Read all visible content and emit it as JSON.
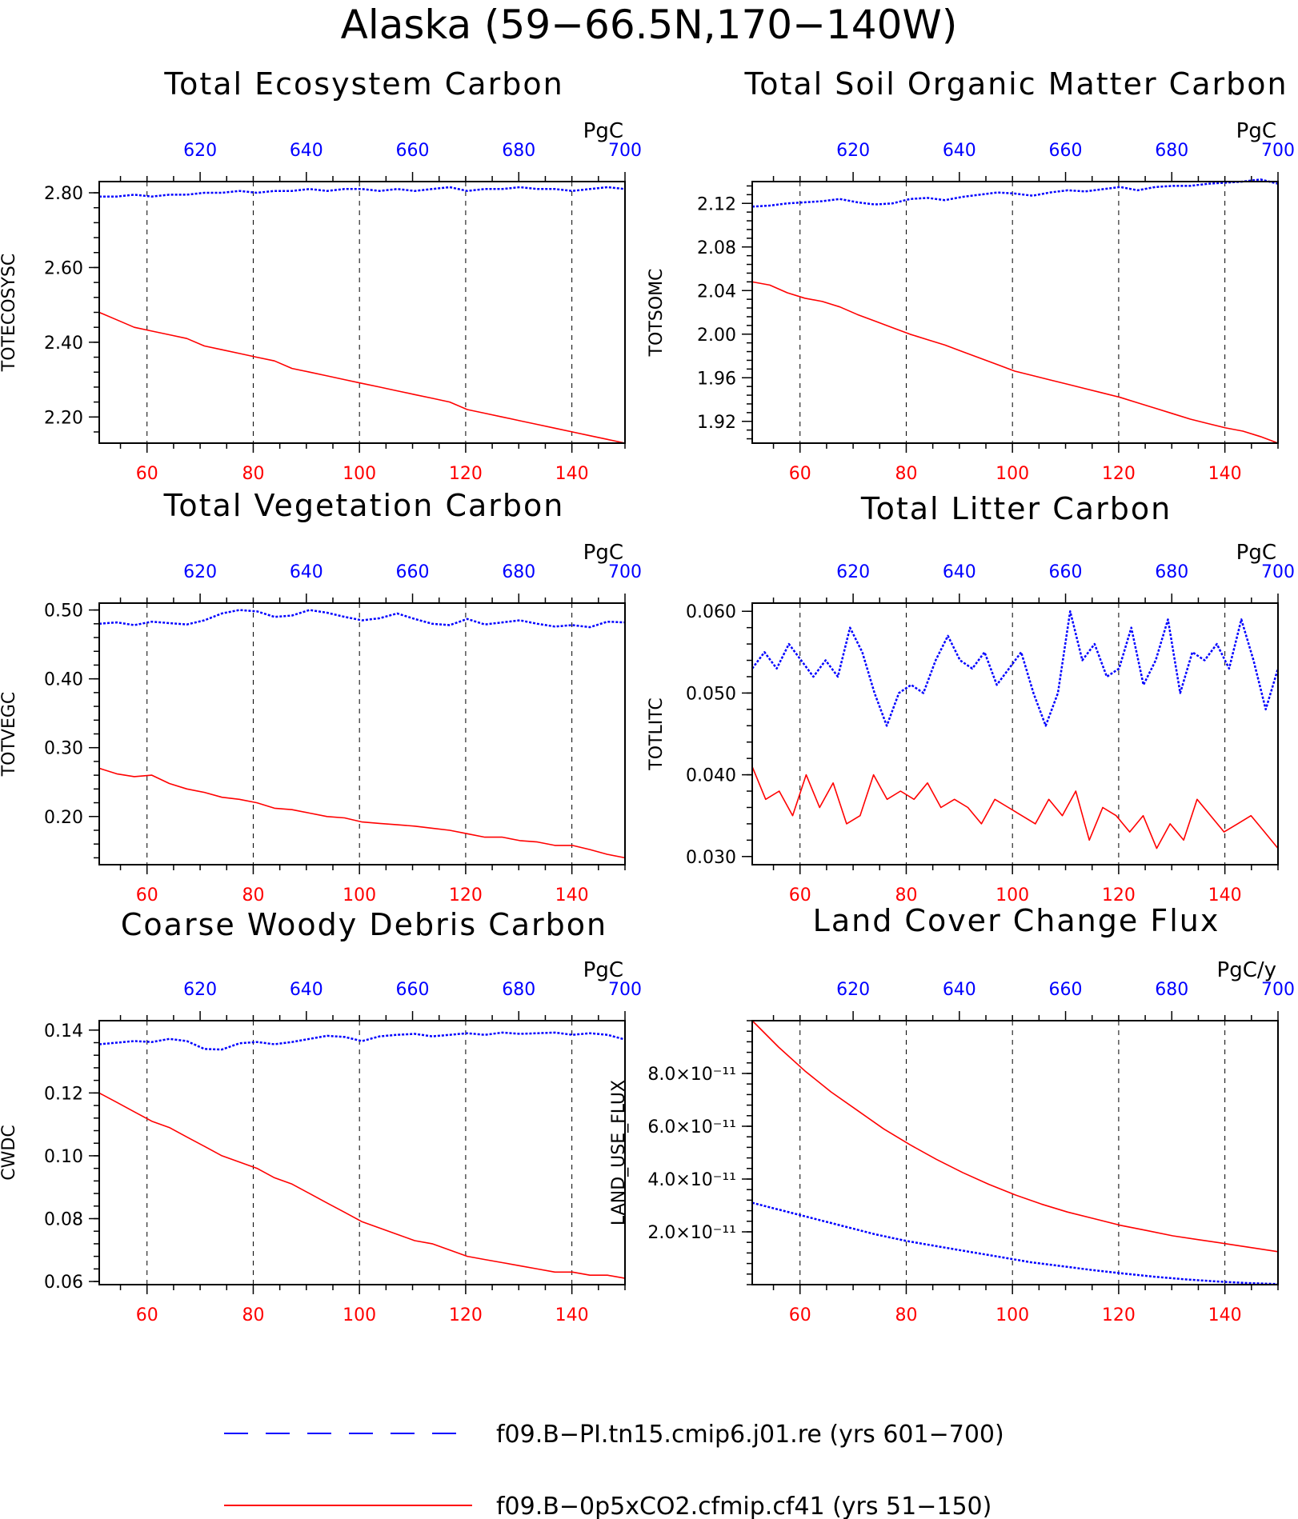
{
  "title": "Alaska (59−66.5N,170−140W)",
  "colors": {
    "series_pi": "#0000ff",
    "series_co2": "#ff0000",
    "top_axis": "#0000ff",
    "bottom_axis": "#ff0000"
  },
  "legend": [
    {
      "label": "f09.B−PI.tn15.cmip6.j01.re (yrs 601−700)",
      "color": "#0000ff",
      "style": "dashed"
    },
    {
      "label": "f09.B−0p5xCO2.cfmip.cf41 (yrs 51−150)",
      "color": "#ff0000",
      "style": "solid"
    }
  ],
  "chart_data": [
    {
      "type": "line",
      "title": "Total Ecosystem Carbon",
      "ylabel": "TOTECOSYSC",
      "unit": "PgC",
      "xlim": [
        51,
        150
      ],
      "x_top_lim": [
        601,
        700
      ],
      "ylim": [
        2.13,
        2.83
      ],
      "x_ticks": [
        "60",
        "80",
        "100",
        "120",
        "140"
      ],
      "x_top_ticks": [
        "620",
        "640",
        "660",
        "680",
        "700"
      ],
      "y_ticks": [
        "2.20",
        "2.40",
        "2.60",
        "2.80"
      ],
      "y_tick_values": [
        2.2,
        2.4,
        2.6,
        2.8
      ],
      "y_minor_step": 0.04,
      "grid": "vertical dashed at bottom-axis ticks",
      "series": [
        {
          "color": "#0000ff",
          "style": "dotted",
          "x_start": 51,
          "x_end": 150,
          "values": [
            2.79,
            2.79,
            2.795,
            2.79,
            2.795,
            2.795,
            2.8,
            2.8,
            2.805,
            2.8,
            2.805,
            2.805,
            2.81,
            2.805,
            2.81,
            2.81,
            2.805,
            2.81,
            2.805,
            2.81,
            2.815,
            2.805,
            2.81,
            2.81,
            2.815,
            2.81,
            2.81,
            2.805,
            2.81,
            2.815,
            2.81
          ]
        },
        {
          "color": "#ff0000",
          "style": "solid",
          "x_start": 51,
          "x_end": 150,
          "values": [
            2.48,
            2.46,
            2.44,
            2.43,
            2.42,
            2.41,
            2.39,
            2.38,
            2.37,
            2.36,
            2.35,
            2.33,
            2.32,
            2.31,
            2.3,
            2.29,
            2.28,
            2.27,
            2.26,
            2.25,
            2.24,
            2.22,
            2.21,
            2.2,
            2.19,
            2.18,
            2.17,
            2.16,
            2.15,
            2.14,
            2.13
          ]
        }
      ]
    },
    {
      "type": "line",
      "title": "Total Soil Organic Matter Carbon",
      "ylabel": "TOTSOMC",
      "unit": "PgC",
      "xlim": [
        51,
        150
      ],
      "x_top_lim": [
        601,
        700
      ],
      "ylim": [
        1.9,
        2.14
      ],
      "x_ticks": [
        "60",
        "80",
        "100",
        "120",
        "140"
      ],
      "x_top_ticks": [
        "620",
        "640",
        "660",
        "680",
        "700"
      ],
      "y_ticks": [
        "1.92",
        "1.96",
        "2.00",
        "2.04",
        "2.08",
        "2.12"
      ],
      "y_tick_values": [
        1.92,
        1.96,
        2.0,
        2.04,
        2.08,
        2.12
      ],
      "y_minor_step": 0.008,
      "grid": "vertical dashed at bottom-axis ticks",
      "series": [
        {
          "color": "#0000ff",
          "style": "dotted",
          "x_start": 51,
          "x_end": 150,
          "values": [
            2.117,
            2.118,
            2.12,
            2.121,
            2.122,
            2.124,
            2.121,
            2.119,
            2.12,
            2.124,
            2.125,
            2.123,
            2.126,
            2.128,
            2.13,
            2.129,
            2.127,
            2.13,
            2.132,
            2.131,
            2.133,
            2.135,
            2.132,
            2.135,
            2.136,
            2.136,
            2.138,
            2.139,
            2.14,
            2.142,
            2.138
          ]
        },
        {
          "color": "#ff0000",
          "style": "solid",
          "x_start": 51,
          "x_end": 150,
          "values": [
            2.048,
            2.045,
            2.038,
            2.033,
            2.03,
            2.025,
            2.018,
            2.012,
            2.006,
            2.0,
            1.995,
            1.99,
            1.984,
            1.978,
            1.972,
            1.966,
            1.962,
            1.958,
            1.954,
            1.95,
            1.946,
            1.942,
            1.937,
            1.932,
            1.927,
            1.922,
            1.918,
            1.914,
            1.911,
            1.906,
            1.9
          ]
        }
      ]
    },
    {
      "type": "line",
      "title": "Total Vegetation Carbon",
      "ylabel": "TOTVEGC",
      "unit": "PgC",
      "xlim": [
        51,
        150
      ],
      "x_top_lim": [
        601,
        700
      ],
      "ylim": [
        0.13,
        0.51
      ],
      "x_ticks": [
        "60",
        "80",
        "100",
        "120",
        "140"
      ],
      "x_top_ticks": [
        "620",
        "640",
        "660",
        "680",
        "700"
      ],
      "y_ticks": [
        "0.20",
        "0.30",
        "0.40",
        "0.50"
      ],
      "y_tick_values": [
        0.2,
        0.3,
        0.4,
        0.5
      ],
      "y_minor_step": 0.02,
      "grid": "vertical dashed at bottom-axis ticks",
      "series": [
        {
          "color": "#0000ff",
          "style": "dotted",
          "x_start": 51,
          "x_end": 150,
          "values": [
            0.48,
            0.482,
            0.478,
            0.483,
            0.481,
            0.479,
            0.485,
            0.495,
            0.5,
            0.498,
            0.49,
            0.492,
            0.5,
            0.496,
            0.49,
            0.485,
            0.488,
            0.495,
            0.487,
            0.48,
            0.478,
            0.487,
            0.479,
            0.482,
            0.485,
            0.48,
            0.476,
            0.478,
            0.475,
            0.483,
            0.482
          ]
        },
        {
          "color": "#ff0000",
          "style": "solid",
          "x_start": 51,
          "x_end": 150,
          "values": [
            0.27,
            0.262,
            0.258,
            0.26,
            0.248,
            0.24,
            0.235,
            0.228,
            0.225,
            0.22,
            0.212,
            0.21,
            0.205,
            0.2,
            0.198,
            0.192,
            0.19,
            0.188,
            0.186,
            0.183,
            0.18,
            0.175,
            0.17,
            0.17,
            0.165,
            0.163,
            0.158,
            0.158,
            0.152,
            0.145,
            0.14
          ]
        }
      ]
    },
    {
      "type": "line",
      "title": "Total Litter Carbon",
      "ylabel": "TOTLITC",
      "unit": "PgC",
      "xlim": [
        51,
        150
      ],
      "x_top_lim": [
        601,
        700
      ],
      "ylim": [
        0.029,
        0.061
      ],
      "x_ticks": [
        "60",
        "80",
        "100",
        "120",
        "140"
      ],
      "x_top_ticks": [
        "620",
        "640",
        "660",
        "680",
        "700"
      ],
      "y_ticks": [
        "0.030",
        "0.040",
        "0.050",
        "0.060"
      ],
      "y_tick_values": [
        0.03,
        0.04,
        0.05,
        0.06
      ],
      "y_minor_step": 0.002,
      "grid": "vertical dashed at bottom-axis ticks",
      "series": [
        {
          "color": "#0000ff",
          "style": "dotted",
          "x_start": 51,
          "x_end": 150,
          "values": [
            0.053,
            0.055,
            0.053,
            0.056,
            0.054,
            0.052,
            0.054,
            0.052,
            0.058,
            0.055,
            0.05,
            0.046,
            0.05,
            0.051,
            0.05,
            0.054,
            0.057,
            0.054,
            0.053,
            0.055,
            0.051,
            0.053,
            0.055,
            0.05,
            0.046,
            0.05,
            0.06,
            0.054,
            0.056,
            0.052,
            0.053,
            0.058,
            0.051,
            0.054,
            0.059,
            0.05,
            0.055,
            0.054,
            0.056,
            0.053,
            0.059,
            0.054,
            0.048,
            0.053
          ]
        },
        {
          "color": "#ff0000",
          "style": "solid",
          "x_start": 51,
          "x_end": 150,
          "values": [
            0.041,
            0.037,
            0.038,
            0.035,
            0.04,
            0.036,
            0.039,
            0.034,
            0.035,
            0.04,
            0.037,
            0.038,
            0.037,
            0.039,
            0.036,
            0.037,
            0.036,
            0.034,
            0.037,
            0.036,
            0.035,
            0.034,
            0.037,
            0.035,
            0.038,
            0.032,
            0.036,
            0.035,
            0.033,
            0.035,
            0.031,
            0.034,
            0.032,
            0.037,
            0.035,
            0.033,
            0.034,
            0.035,
            0.033,
            0.031
          ]
        }
      ]
    },
    {
      "type": "line",
      "title": "Coarse Woody Debris Carbon",
      "ylabel": "CWDC",
      "unit": "PgC",
      "xlim": [
        51,
        150
      ],
      "x_top_lim": [
        601,
        700
      ],
      "ylim": [
        0.059,
        0.143
      ],
      "x_ticks": [
        "60",
        "80",
        "100",
        "120",
        "140"
      ],
      "x_top_ticks": [
        "620",
        "640",
        "660",
        "680",
        "700"
      ],
      "y_ticks": [
        "0.06",
        "0.08",
        "0.10",
        "0.12",
        "0.14"
      ],
      "y_tick_values": [
        0.06,
        0.08,
        0.1,
        0.12,
        0.14
      ],
      "y_minor_step": 0.004,
      "grid": "vertical dashed at bottom-axis ticks",
      "series": [
        {
          "color": "#0000ff",
          "style": "dotted",
          "x_start": 51,
          "x_end": 150,
          "values": [
            0.1355,
            0.136,
            0.1365,
            0.1362,
            0.1372,
            0.1365,
            0.134,
            0.1338,
            0.1358,
            0.1362,
            0.1355,
            0.1362,
            0.1372,
            0.1382,
            0.1378,
            0.1365,
            0.138,
            0.1385,
            0.1388,
            0.138,
            0.1385,
            0.139,
            0.1385,
            0.1392,
            0.1388,
            0.139,
            0.1392,
            0.1385,
            0.139,
            0.1385,
            0.137
          ]
        },
        {
          "color": "#ff0000",
          "style": "solid",
          "x_start": 51,
          "x_end": 150,
          "values": [
            0.12,
            0.117,
            0.114,
            0.111,
            0.109,
            0.106,
            0.103,
            0.1,
            0.098,
            0.096,
            0.093,
            0.091,
            0.088,
            0.085,
            0.082,
            0.079,
            0.077,
            0.075,
            0.073,
            0.072,
            0.07,
            0.068,
            0.067,
            0.066,
            0.065,
            0.064,
            0.063,
            0.063,
            0.062,
            0.062,
            0.061
          ]
        }
      ]
    },
    {
      "type": "line",
      "title": "Land Cover Change Flux",
      "ylabel": "LAND_USE_FLUX",
      "unit": "PgC/y",
      "xlim": [
        51,
        150
      ],
      "x_top_lim": [
        601,
        700
      ],
      "ylim": [
        0.0,
        1e-10
      ],
      "x_ticks": [
        "60",
        "80",
        "100",
        "120",
        "140"
      ],
      "x_top_ticks": [
        "620",
        "640",
        "660",
        "680",
        "700"
      ],
      "y_ticks": [
        "2.0×10⁻¹¹",
        "4.0×10⁻¹¹",
        "6.0×10⁻¹¹",
        "8.0×10⁻¹¹"
      ],
      "y_tick_values": [
        2e-11,
        4e-11,
        6e-11,
        8e-11
      ],
      "y_minor_step": 4e-12,
      "grid": "vertical dashed at bottom-axis ticks",
      "series": [
        {
          "color": "#0000ff",
          "style": "dotted",
          "x_start": 51,
          "x_end": 150,
          "values": [
            3.1e-11,
            2.8e-11,
            2.5e-11,
            2.2e-11,
            1.9e-11,
            1.65e-11,
            1.45e-11,
            1.25e-11,
            1.05e-11,
            8.5e-12,
            7e-12,
            5.5e-12,
            4.2e-12,
            3e-12,
            2e-12,
            1.2e-12,
            6e-13,
            2e-13
          ]
        },
        {
          "color": "#ff0000",
          "style": "solid",
          "x_start": 51,
          "x_end": 150,
          "values": [
            1e-10,
            9e-11,
            8.1e-11,
            7.3e-11,
            6.6e-11,
            5.9e-11,
            5.3e-11,
            4.75e-11,
            4.25e-11,
            3.8e-11,
            3.4e-11,
            3.05e-11,
            2.75e-11,
            2.5e-11,
            2.25e-11,
            2.05e-11,
            1.85e-11,
            1.7e-11,
            1.55e-11,
            1.4e-11,
            1.25e-11
          ]
        }
      ]
    }
  ]
}
